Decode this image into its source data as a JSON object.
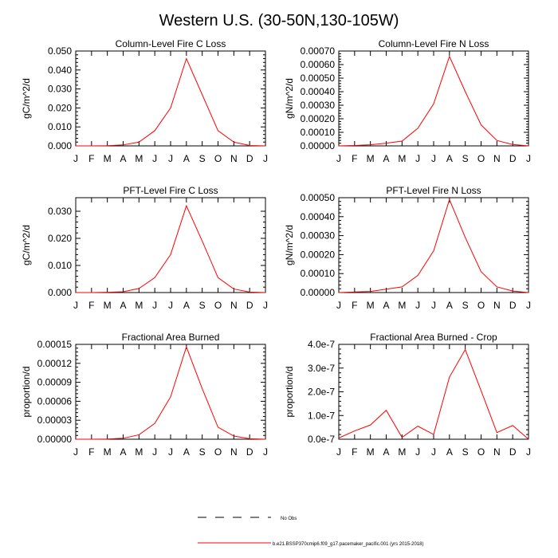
{
  "figure_title": "Western U.S. (30-50N,130-105W)",
  "months": [
    "J",
    "F",
    "M",
    "A",
    "M",
    "J",
    "J",
    "A",
    "S",
    "O",
    "N",
    "D",
    "J"
  ],
  "legend": {
    "entries": [
      {
        "label": "No Obs",
        "color": "#000000",
        "dashed": true
      },
      {
        "label": "b.e21.BSSP370cmip6.f09_g17.pacemaker_pacific.001 (yrs 2015-2018)",
        "color": "#ff0000",
        "dashed": false
      }
    ]
  },
  "chart_data": [
    {
      "type": "line",
      "title": "Column-Level Fire C Loss",
      "ylabel": "gC/m^2/d",
      "ylim": [
        0,
        0.05
      ],
      "yticks": [
        0,
        0.01,
        0.02,
        0.03,
        0.04,
        0.05
      ],
      "yticklabels": [
        "0.000",
        "0.010",
        "0.020",
        "0.030",
        "0.040",
        "0.050"
      ],
      "series": [
        {
          "name": "b.e21.BSSP370cmip6.f09_g17.pacemaker_pacific.001",
          "color": "#ff0000",
          "values": [
            0.0,
            0.0,
            0.0001,
            0.0005,
            0.002,
            0.008,
            0.02,
            0.046,
            0.027,
            0.008,
            0.002,
            0.0002,
            0.0
          ]
        }
      ]
    },
    {
      "type": "line",
      "title": "Column-Level Fire N Loss",
      "ylabel": "gN/m^2/d",
      "ylim": [
        0,
        0.0007
      ],
      "yticks": [
        0,
        0.0001,
        0.0002,
        0.0003,
        0.0004,
        0.0005,
        0.0006,
        0.0007
      ],
      "yticklabels": [
        "0.00000",
        "0.00010",
        "0.00020",
        "0.00030",
        "0.00040",
        "0.00050",
        "0.00060",
        "0.00070"
      ],
      "series": [
        {
          "name": "b.e21.BSSP370cmip6.f09_g17.pacemaker_pacific.001",
          "color": "#ff0000",
          "values": [
            0.0,
            3e-06,
            8e-06,
            2e-05,
            3.5e-05,
            0.00013,
            0.00031,
            0.00066,
            0.0004,
            0.000155,
            4e-05,
            1e-05,
            0.0
          ]
        }
      ]
    },
    {
      "type": "line",
      "title": "PFT-Level Fire C Loss",
      "ylabel": "gC/m^2/d",
      "ylim": [
        0,
        0.035
      ],
      "yticks": [
        0,
        0.01,
        0.02,
        0.03
      ],
      "yticklabels": [
        "0.000",
        "0.010",
        "0.020",
        "0.030"
      ],
      "series": [
        {
          "name": "b.e21.BSSP370cmip6.f09_g17.pacemaker_pacific.001",
          "color": "#ff0000",
          "values": [
            0.0,
            0.0,
            0.0001,
            0.0003,
            0.0015,
            0.0055,
            0.014,
            0.032,
            0.019,
            0.0055,
            0.0013,
            0.0002,
            0.0
          ]
        }
      ]
    },
    {
      "type": "line",
      "title": "PFT-Level Fire N Loss",
      "ylabel": "gN/m^2/d",
      "ylim": [
        0,
        0.0005
      ],
      "yticks": [
        0,
        0.0001,
        0.0002,
        0.0003,
        0.0004,
        0.0005
      ],
      "yticklabels": [
        "0.00000",
        "0.00010",
        "0.00020",
        "0.00030",
        "0.00040",
        "0.00050"
      ],
      "series": [
        {
          "name": "b.e21.BSSP370cmip6.f09_g17.pacemaker_pacific.001",
          "color": "#ff0000",
          "values": [
            0.0,
            3e-06,
            6e-06,
            1.8e-05,
            3e-05,
            9e-05,
            0.00022,
            0.00049,
            0.00029,
            0.00011,
            3e-05,
            8e-06,
            0.0
          ]
        }
      ]
    },
    {
      "type": "line",
      "title": "Fractional Area Burned",
      "ylabel": "proportion/d",
      "ylim": [
        0,
        0.00015
      ],
      "yticks": [
        0,
        3e-05,
        6e-05,
        9e-05,
        0.00012,
        0.00015
      ],
      "yticklabels": [
        "0.00000",
        "0.00003",
        "0.00006",
        "0.00009",
        "0.00012",
        "0.00015"
      ],
      "series": [
        {
          "name": "b.e21.BSSP370cmip6.f09_g17.pacemaker_pacific.001",
          "color": "#ff0000",
          "values": [
            0.0,
            0.0,
            3e-07,
            1.5e-06,
            7e-06,
            2.5e-05,
            6.7e-05,
            0.000146,
            8e-05,
            1.9e-05,
            5e-06,
            8e-07,
            0.0
          ]
        }
      ]
    },
    {
      "type": "line",
      "title": "Fractional Area Burned - Crop",
      "ylabel": "proportion/d",
      "ylim": [
        0,
        4e-07
      ],
      "yticks": [
        0,
        1e-07,
        2e-07,
        3e-07,
        4e-07
      ],
      "yticklabels": [
        "0.0e-7",
        "1.0e-7",
        "2.0e-7",
        "3.0e-7",
        "4.0e-7"
      ],
      "series": [
        {
          "name": "b.e21.BSSP370cmip6.f09_g17.pacemaker_pacific.001",
          "color": "#ff0000",
          "values": [
            5e-09,
            3.5e-08,
            6e-08,
            1.22e-07,
            8e-09,
            5.5e-08,
            2e-08,
            2.62e-07,
            3.78e-07,
            2.05e-07,
            2.8e-08,
            5.8e-08,
            0.0
          ]
        }
      ]
    }
  ]
}
